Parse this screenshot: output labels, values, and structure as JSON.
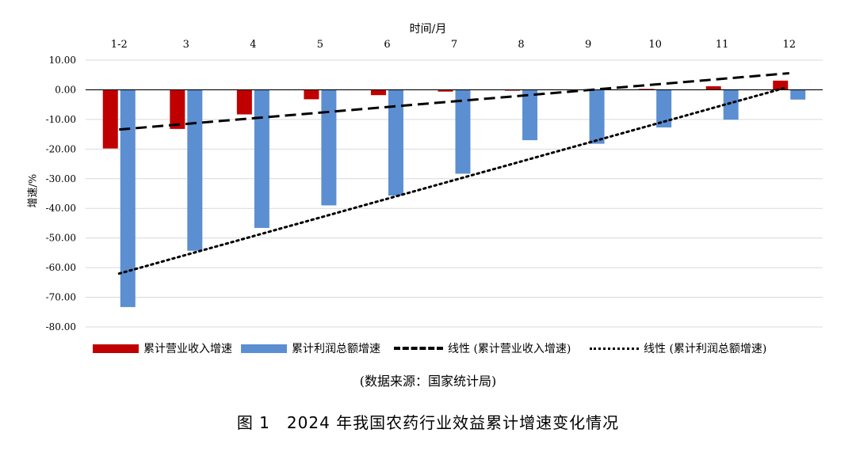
{
  "chart_data": {
    "type": "bar",
    "categories": [
      "1-2",
      "3",
      "4",
      "5",
      "6",
      "7",
      "8",
      "9",
      "10",
      "11",
      "12"
    ],
    "series": [
      {
        "name": "累计营业收入增速",
        "color": "#c00000",
        "values": [
          -19.8,
          -13.2,
          -8.3,
          -3.2,
          -1.8,
          -0.6,
          -0.3,
          0,
          0.3,
          1.2,
          3.1
        ]
      },
      {
        "name": "累计利润总额增速",
        "color": "#5b8fd1",
        "values": [
          -73.3,
          -54.3,
          -46.6,
          -39.0,
          -35.7,
          -28.3,
          -17.0,
          -18.2,
          -12.7,
          -10.1,
          -3.3
        ]
      }
    ],
    "trendlines": [
      {
        "name": "线性 (累计营业收入增速)",
        "style": "dashed",
        "start": -13.4,
        "end": 5.6
      },
      {
        "name": "线性 (累计利润总额增速)",
        "style": "dotted",
        "start": -62.0,
        "end": 0.6
      }
    ],
    "xlabel": "时间/月",
    "ylabel": "增速/%",
    "ylim": [
      -80,
      10
    ],
    "yticks": [
      "10.00",
      "0.00",
      "-10.00",
      "-20.00",
      "-30.00",
      "-40.00",
      "-50.00",
      "-60.00",
      "-70.00",
      "-80.00"
    ],
    "xaxis_position": "top",
    "grid": true,
    "legend_position": "bottom"
  },
  "source_text": "(数据来源：国家统计局)",
  "caption": "图 1　2024 年我国农药行业效益累计增速变化情况"
}
